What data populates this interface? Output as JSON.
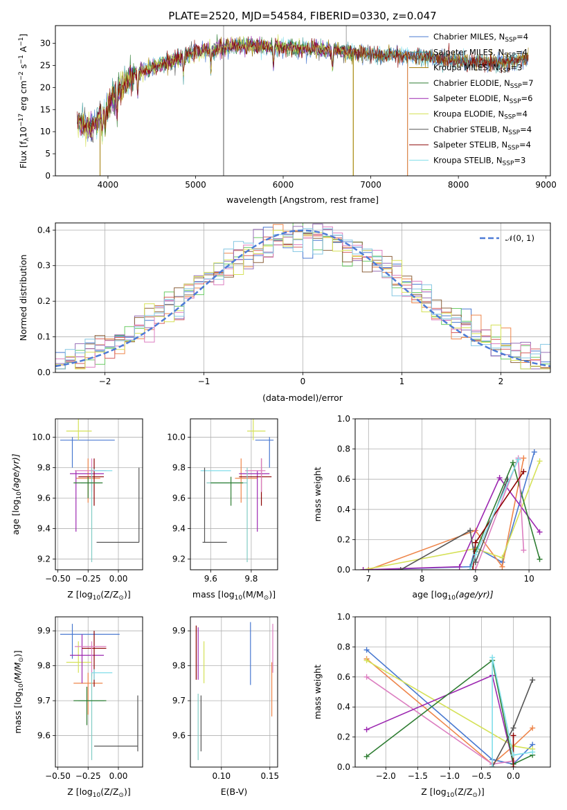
{
  "figure": {
    "title": "PLATE=2520, MJD=54584, FIBERID=0330, z=0.047"
  },
  "chart_data": [
    {
      "id": "spectrum",
      "type": "line",
      "title": "PLATE=2520, MJD=54584, FIBERID=0330, z=0.047",
      "xlabel": "wavelength [Angstrom, rest frame]",
      "ylabel": "Flux [f",
      "ylabel_sub": "λ",
      "ylabel_mid": "10",
      "ylabel_sup1": "−17",
      "ylabel_tail": " erg cm",
      "ylabel_sup2": "−2",
      "ylabel_tail2": " s",
      "ylabel_sup3": "−1",
      "ylabel_tail3": " A",
      "ylabel_sup4": "−1",
      "ylabel_end": "]",
      "xlim": [
        3400,
        9050
      ],
      "ylim": [
        0,
        34
      ],
      "xticks": [
        4000,
        5000,
        6000,
        7000,
        8000,
        9000
      ],
      "yticks": [
        0,
        5,
        10,
        15,
        20,
        25,
        30
      ],
      "grid": false,
      "legend_position": "top-right",
      "spectrum_x_range": [
        3650,
        8800
      ],
      "series": [
        {
          "name": "Chabrier MILES, N",
          "sub": "SSP",
          "val": "=4",
          "color": "#4878d0",
          "x_end": 8800
        },
        {
          "name": "Salpeter MILES, N",
          "sub": "SSP",
          "val": "=4",
          "color": "#3a9a9a",
          "x_end": 8800
        },
        {
          "name": "Kroupa MILES, N",
          "sub": "SSP",
          "val": "=3",
          "color": "#a07800",
          "x_end": 8800
        },
        {
          "name": "Chabrier ELODIE, N",
          "sub": "SSP",
          "val": "=7",
          "color": "#2e7d32",
          "x_end": 6800
        },
        {
          "name": "Salpeter ELODIE, N",
          "sub": "SSP",
          "val": "=6",
          "color": "#9c27b0",
          "x_end": 6800
        },
        {
          "name": "Kroupa ELODIE, N",
          "sub": "SSP",
          "val": "=4",
          "color": "#d4e157",
          "x_end": 6800
        },
        {
          "name": "Chabrier STELIB, N",
          "sub": "SSP",
          "val": "=4",
          "color": "#555555",
          "x_end": 8800
        },
        {
          "name": "Salpeter STELIB, N",
          "sub": "SSP",
          "val": "=4",
          "color": "#8b0000",
          "x_end": 8800
        },
        {
          "name": "Kroupa STELIB, N",
          "sub": "SSP",
          "val": "=3",
          "color": "#80deea",
          "x_end": 8800
        }
      ],
      "continuum_anchors": {
        "x": [
          3650,
          3800,
          3950,
          4100,
          4300,
          4500,
          4800,
          5000,
          5300,
          5600,
          6000,
          6500,
          7000,
          7500,
          8000,
          8400,
          8800
        ],
        "y": [
          12.5,
          11,
          14,
          19,
          23,
          24.5,
          26.5,
          28,
          29,
          29.5,
          29,
          28.5,
          27.5,
          27,
          26,
          25.5,
          26.5
        ]
      }
    },
    {
      "id": "residuals",
      "type": "histogram",
      "xlabel": "(data-model)/error",
      "ylabel": "Normed distribution",
      "xlim": [
        -2.5,
        2.5
      ],
      "ylim": [
        0,
        0.42
      ],
      "xticks": [
        -2,
        -1,
        0,
        1,
        2
      ],
      "xticklabels": [
        "−2",
        "−1",
        "0",
        "1",
        "2"
      ],
      "yticks": [
        0.0,
        0.1,
        0.2,
        0.3,
        0.4
      ],
      "yticklabels": [
        "0.0",
        "0.1",
        "0.2",
        "0.3",
        "0.4"
      ],
      "grid": true,
      "legend_position": "top-right",
      "legend_label": "𝒩(0, 1)",
      "normal_curve": {
        "mean": 0,
        "sigma": 1,
        "color": "#4d7bd6"
      },
      "bins": {
        "start": -2.5,
        "width": 0.1,
        "count": 50
      },
      "series_colors": [
        "#4878d0",
        "#ee854a",
        "#6acc64",
        "#d65f5f",
        "#956cb4",
        "#8c613c",
        "#dc7ec0",
        "#d5e157",
        "#82c6e2"
      ]
    },
    {
      "id": "age-vs-Z",
      "type": "errorbar",
      "xlabel": "Z [log",
      "xlabel_sub": "10",
      "xlabel_tail": "(Z/Z",
      "xlabel_sub2": "⊙",
      "xlabel_end": ")]",
      "ylabel": "age  [log",
      "ylabel_sub": "10",
      "ylabel_tail": "(age/yr)]",
      "xlim": [
        -0.52,
        0.2
      ],
      "ylim": [
        9.13,
        10.12
      ],
      "xticks": [
        -0.5,
        -0.25,
        0.0
      ],
      "xticklabels": [
        "−0.50",
        "−0.25",
        "0.00"
      ],
      "yticks": [
        9.2,
        9.4,
        9.6,
        9.8,
        10.0
      ],
      "yticklabels": [
        "9.2",
        "9.4",
        "9.6",
        "9.8",
        "10.0"
      ],
      "grid": true,
      "points": [
        {
          "x": -0.38,
          "xlo": -0.48,
          "xhi": -0.03,
          "y": 9.98,
          "ylo": 9.8,
          "yhi": 10.0,
          "color": "#4878d0"
        },
        {
          "x": -0.33,
          "xlo": -0.43,
          "xhi": -0.22,
          "y": 10.04,
          "ylo": 9.98,
          "yhi": 10.12,
          "color": "#d5e157"
        },
        {
          "x": -0.25,
          "xlo": -0.35,
          "xhi": -0.15,
          "y": 9.73,
          "ylo": 9.57,
          "yhi": 9.86,
          "color": "#ee854a"
        },
        {
          "x": -0.35,
          "xlo": -0.4,
          "xhi": -0.12,
          "y": 9.76,
          "ylo": 9.38,
          "yhi": 9.78,
          "color": "#9c27b0"
        },
        {
          "x": -0.2,
          "xlo": -0.33,
          "xhi": -0.12,
          "y": 9.74,
          "ylo": 9.55,
          "yhi": 9.86,
          "color": "#8b0000"
        },
        {
          "x": -0.22,
          "xlo": -0.36,
          "xhi": -0.1,
          "y": 9.78,
          "ylo": 9.64,
          "yhi": 9.86,
          "color": "#dc7ec0"
        },
        {
          "x": -0.22,
          "xlo": -0.31,
          "xhi": -0.15,
          "y": 9.7,
          "ylo": 9.18,
          "yhi": 9.8,
          "color": "#80cbc4"
        },
        {
          "x": -0.25,
          "xlo": -0.37,
          "xhi": -0.13,
          "y": 9.7,
          "ylo": 9.6,
          "yhi": 9.74,
          "color": "#2e7d32"
        },
        {
          "x": -0.2,
          "xlo": -0.2,
          "xhi": -0.05,
          "y": 9.78,
          "ylo": 9.78,
          "yhi": 9.79,
          "color": "#80deea"
        },
        {
          "x": 0.17,
          "xlo": -0.18,
          "xhi": 0.17,
          "y": 9.31,
          "ylo": 9.31,
          "yhi": 9.8,
          "color": "#555555"
        }
      ]
    },
    {
      "id": "age-vs-mass",
      "type": "errorbar",
      "xlabel": "mass [log",
      "xlabel_sub": "10",
      "xlabel_tail": "(M/M",
      "xlabel_sub2": "⊙",
      "xlabel_end": ")]",
      "xlim": [
        9.5,
        9.93
      ],
      "ylim": [
        9.13,
        10.12
      ],
      "xticks": [
        9.6,
        9.8
      ],
      "xticklabels": [
        "9.6",
        "9.8"
      ],
      "yticks": [
        9.2,
        9.4,
        9.6,
        9.8,
        10.0
      ],
      "yticklabels": [
        "9.2",
        "9.4",
        "9.6",
        "9.8",
        "10.0"
      ],
      "grid": true,
      "points": [
        {
          "x": 9.89,
          "xlo": 9.82,
          "xhi": 9.91,
          "y": 9.98,
          "ylo": 9.8,
          "yhi": 10.0,
          "color": "#4878d0"
        },
        {
          "x": 9.81,
          "xlo": 9.78,
          "xhi": 9.87,
          "y": 10.04,
          "ylo": 9.98,
          "yhi": 10.12,
          "color": "#d5e157"
        },
        {
          "x": 9.75,
          "xlo": 9.72,
          "xhi": 9.83,
          "y": 9.73,
          "ylo": 9.57,
          "yhi": 9.86,
          "color": "#ee854a"
        },
        {
          "x": 9.83,
          "xlo": 9.74,
          "xhi": 9.89,
          "y": 9.76,
          "ylo": 9.38,
          "yhi": 9.78,
          "color": "#9c27b0"
        },
        {
          "x": 9.85,
          "xlo": 9.74,
          "xhi": 9.9,
          "y": 9.74,
          "ylo": 9.55,
          "yhi": 9.86,
          "color": "#8b0000"
        },
        {
          "x": 9.85,
          "xlo": 9.77,
          "xhi": 9.87,
          "y": 9.78,
          "ylo": 9.64,
          "yhi": 9.86,
          "color": "#dc7ec0"
        },
        {
          "x": 9.78,
          "xlo": 9.58,
          "xhi": 9.78,
          "y": 9.7,
          "ylo": 9.18,
          "yhi": 9.8,
          "color": "#80cbc4"
        },
        {
          "x": 9.7,
          "xlo": 9.6,
          "xhi": 9.76,
          "y": 9.7,
          "ylo": 9.55,
          "yhi": 9.74,
          "color": "#2e7d32"
        },
        {
          "x": 9.57,
          "xlo": 9.55,
          "xhi": 9.7,
          "y": 9.78,
          "ylo": 9.78,
          "yhi": 9.79,
          "color": "#80deea"
        },
        {
          "x": 9.57,
          "xlo": 9.56,
          "xhi": 9.68,
          "y": 9.31,
          "ylo": 9.31,
          "yhi": 9.8,
          "color": "#555555"
        }
      ]
    },
    {
      "id": "massweight-vs-age",
      "type": "line",
      "xlabel": "age  [log",
      "xlabel_sub": "10",
      "xlabel_tail": "(age/yr)]",
      "ylabel": "mass weight",
      "xlim": [
        6.75,
        10.4
      ],
      "ylim": [
        0,
        1.0
      ],
      "xticks": [
        7,
        8,
        9,
        10
      ],
      "xticklabels": [
        "7",
        "8",
        "9",
        "10"
      ],
      "yticks": [
        0.0,
        0.2,
        0.4,
        0.6,
        0.8,
        1.0
      ],
      "yticklabels": [
        "0.0",
        "0.2",
        "0.4",
        "0.6",
        "0.8",
        "1.0"
      ],
      "grid": true,
      "series": [
        {
          "color": "#4878d0",
          "x": [
            7.0,
            8.9,
            9.0,
            9.5,
            10.1
          ],
          "y": [
            0.0,
            0.02,
            0.15,
            0.05,
            0.78
          ]
        },
        {
          "color": "#ee854a",
          "x": [
            7.0,
            9.0,
            9.5,
            9.9
          ],
          "y": [
            0.0,
            0.26,
            0.02,
            0.74
          ]
        },
        {
          "color": "#d5e157",
          "x": [
            6.9,
            9.0,
            9.5,
            10.2
          ],
          "y": [
            0.0,
            0.14,
            0.08,
            0.72
          ]
        },
        {
          "color": "#9c27b0",
          "x": [
            6.9,
            8.7,
            9.45,
            10.2
          ],
          "y": [
            0.0,
            0.02,
            0.61,
            0.25
          ]
        },
        {
          "color": "#2e7d32",
          "x": [
            8.9,
            9.0,
            9.7,
            10.2
          ],
          "y": [
            0.0,
            0.12,
            0.71,
            0.07
          ]
        },
        {
          "color": "#dc7ec0",
          "x": [
            9.0,
            9.8,
            9.9
          ],
          "y": [
            0.0,
            0.74,
            0.13
          ]
        },
        {
          "color": "#555555",
          "x": [
            7.6,
            8.9,
            9.0,
            9.6
          ],
          "y": [
            0.0,
            0.26,
            0.05,
            0.6
          ]
        },
        {
          "color": "#8b0000",
          "x": [
            8.95,
            9.0,
            9.9
          ],
          "y": [
            0.0,
            0.18,
            0.65
          ]
        },
        {
          "color": "#80deea",
          "x": [
            8.9,
            9.0,
            9.8
          ],
          "y": [
            0.0,
            0.1,
            0.73
          ]
        }
      ]
    },
    {
      "id": "mass-vs-Z",
      "type": "errorbar",
      "xlabel": "Z [log",
      "xlabel_sub": "10",
      "xlabel_tail": "(Z/Z",
      "xlabel_sub2": "⊙",
      "xlabel_end": ")]",
      "ylabel": "mass [log",
      "ylabel_sub": "10",
      "ylabel_tail": "(M/M",
      "ylabel_sub2": "⊙",
      "ylabel_end": ")]",
      "xlim": [
        -0.52,
        0.2
      ],
      "ylim": [
        9.51,
        9.94
      ],
      "xticks": [
        -0.5,
        -0.25,
        0.0
      ],
      "xticklabels": [
        "−0.50",
        "−0.25",
        "0.00"
      ],
      "yticks": [
        9.6,
        9.7,
        9.8,
        9.9
      ],
      "yticklabels": [
        "9.6",
        "9.7",
        "9.8",
        "9.9"
      ],
      "grid": true,
      "points": [
        {
          "x": -0.38,
          "xlo": -0.48,
          "xhi": 0.01,
          "y": 9.89,
          "ylo": 9.82,
          "yhi": 9.92,
          "color": "#4878d0"
        },
        {
          "x": -0.33,
          "xlo": -0.43,
          "xhi": -0.22,
          "y": 9.81,
          "ylo": 9.78,
          "yhi": 9.87,
          "color": "#d5e157"
        },
        {
          "x": -0.25,
          "xlo": -0.37,
          "xhi": -0.13,
          "y": 9.75,
          "ylo": 9.66,
          "yhi": 9.78,
          "color": "#ee854a"
        },
        {
          "x": -0.3,
          "xlo": -0.4,
          "xhi": -0.12,
          "y": 9.83,
          "ylo": 9.75,
          "yhi": 9.89,
          "color": "#9c27b0"
        },
        {
          "x": -0.2,
          "xlo": -0.3,
          "xhi": -0.1,
          "y": 9.85,
          "ylo": 9.74,
          "yhi": 9.9,
          "color": "#8b0000"
        },
        {
          "x": -0.22,
          "xlo": -0.36,
          "xhi": -0.1,
          "y": 9.855,
          "ylo": 9.77,
          "yhi": 9.87,
          "color": "#dc7ec0"
        },
        {
          "x": -0.22,
          "xlo": -0.33,
          "xhi": -0.12,
          "y": 9.7,
          "ylo": 9.53,
          "yhi": 9.78,
          "color": "#80cbc4"
        },
        {
          "x": -0.26,
          "xlo": -0.37,
          "xhi": -0.1,
          "y": 9.7,
          "ylo": 9.63,
          "yhi": 9.74,
          "color": "#2e7d32"
        },
        {
          "x": -0.2,
          "xlo": -0.22,
          "xhi": -0.05,
          "y": 9.78,
          "ylo": 9.76,
          "yhi": 9.79,
          "color": "#80deea"
        },
        {
          "x": 0.16,
          "xlo": -0.2,
          "xhi": 0.16,
          "y": 9.57,
          "ylo": 9.555,
          "yhi": 9.715,
          "color": "#555555"
        }
      ]
    },
    {
      "id": "mass-vs-EBV",
      "type": "errorbar",
      "xlabel": "E(B-V)",
      "xlim": [
        0.068,
        0.158
      ],
      "ylim": [
        9.51,
        9.94
      ],
      "xticks": [
        0.1,
        0.15
      ],
      "xticklabels": [
        "0.10",
        "0.15"
      ],
      "yticks": [
        9.6,
        9.7,
        9.8,
        9.9
      ],
      "yticklabels": [
        "9.6",
        "9.7",
        "9.8",
        "9.9"
      ],
      "grid": true,
      "points": [
        {
          "x": 0.074,
          "y": 9.83,
          "ylo": 9.76,
          "yhi": 9.915,
          "color": "#8b0000"
        },
        {
          "x": 0.076,
          "y": 9.8,
          "ylo": 9.76,
          "yhi": 9.91,
          "color": "#9c27b0"
        },
        {
          "x": 0.076,
          "y": 9.65,
          "ylo": 9.53,
          "yhi": 9.72,
          "color": "#80cbc4"
        },
        {
          "x": 0.079,
          "y": 9.63,
          "ylo": 9.555,
          "yhi": 9.715,
          "color": "#555555"
        },
        {
          "x": 0.082,
          "y": 9.81,
          "ylo": 9.75,
          "yhi": 9.87,
          "color": "#d5e157"
        },
        {
          "x": 0.13,
          "y": 9.85,
          "ylo": 9.745,
          "yhi": 9.925,
          "color": "#4878d0"
        },
        {
          "x": 0.152,
          "y": 9.72,
          "ylo": 9.655,
          "yhi": 9.81,
          "color": "#ee854a"
        },
        {
          "x": 0.153,
          "y": 9.86,
          "ylo": 9.78,
          "yhi": 9.92,
          "color": "#dc7ec0"
        }
      ]
    },
    {
      "id": "massweight-vs-Z",
      "type": "line",
      "xlabel": "Z [log",
      "xlabel_sub": "10",
      "xlabel_tail": "(Z/Z",
      "xlabel_sub2": "⊙",
      "xlabel_end": ")]",
      "ylabel": "mass weight",
      "xlim": [
        -2.48,
        0.58
      ],
      "ylim": [
        0,
        1.0
      ],
      "xticks": [
        -2.0,
        -1.5,
        -1.0,
        -0.5,
        0.0
      ],
      "xticklabels": [
        "−2.0",
        "−1.5",
        "−1.0",
        "−0.5",
        "0.0"
      ],
      "yticks": [
        0.0,
        0.2,
        0.4,
        0.6,
        0.8,
        1.0
      ],
      "yticklabels": [
        "0.0",
        "0.2",
        "0.4",
        "0.6",
        "0.8",
        "1.0"
      ],
      "grid": true,
      "series": [
        {
          "color": "#4878d0",
          "x": [
            -2.3,
            -0.33,
            0.0,
            0.3
          ],
          "y": [
            0.78,
            0.05,
            0.02,
            0.15
          ]
        },
        {
          "color": "#ee854a",
          "x": [
            -2.3,
            -0.33,
            0.0,
            0.3
          ],
          "y": [
            0.72,
            0.02,
            0.14,
            0.26
          ]
        },
        {
          "color": "#d5e157",
          "x": [
            -2.3,
            0.0,
            0.3
          ],
          "y": [
            0.71,
            0.14,
            0.12
          ]
        },
        {
          "color": "#dc7ec0",
          "x": [
            -2.3,
            -0.33,
            0.0
          ],
          "y": [
            0.6,
            0.02,
            0.04
          ]
        },
        {
          "color": "#9c27b0",
          "x": [
            -2.3,
            -0.33,
            0.0
          ],
          "y": [
            0.25,
            0.61,
            0.02
          ]
        },
        {
          "color": "#2e7d32",
          "x": [
            -2.3,
            -0.33,
            0.0,
            0.3
          ],
          "y": [
            0.07,
            0.71,
            0.02,
            0.08
          ]
        },
        {
          "color": "#555555",
          "x": [
            -0.33,
            0.0,
            0.3
          ],
          "y": [
            0.0,
            0.26,
            0.58
          ]
        },
        {
          "color": "#8b0000",
          "x": [
            0.0,
            0.0
          ],
          "y": [
            0.0,
            0.21
          ]
        },
        {
          "color": "#80deea",
          "x": [
            -0.33,
            -0.33,
            0.0,
            0.3
          ],
          "y": [
            0.0,
            0.73,
            0.08,
            0.1
          ]
        }
      ]
    }
  ]
}
